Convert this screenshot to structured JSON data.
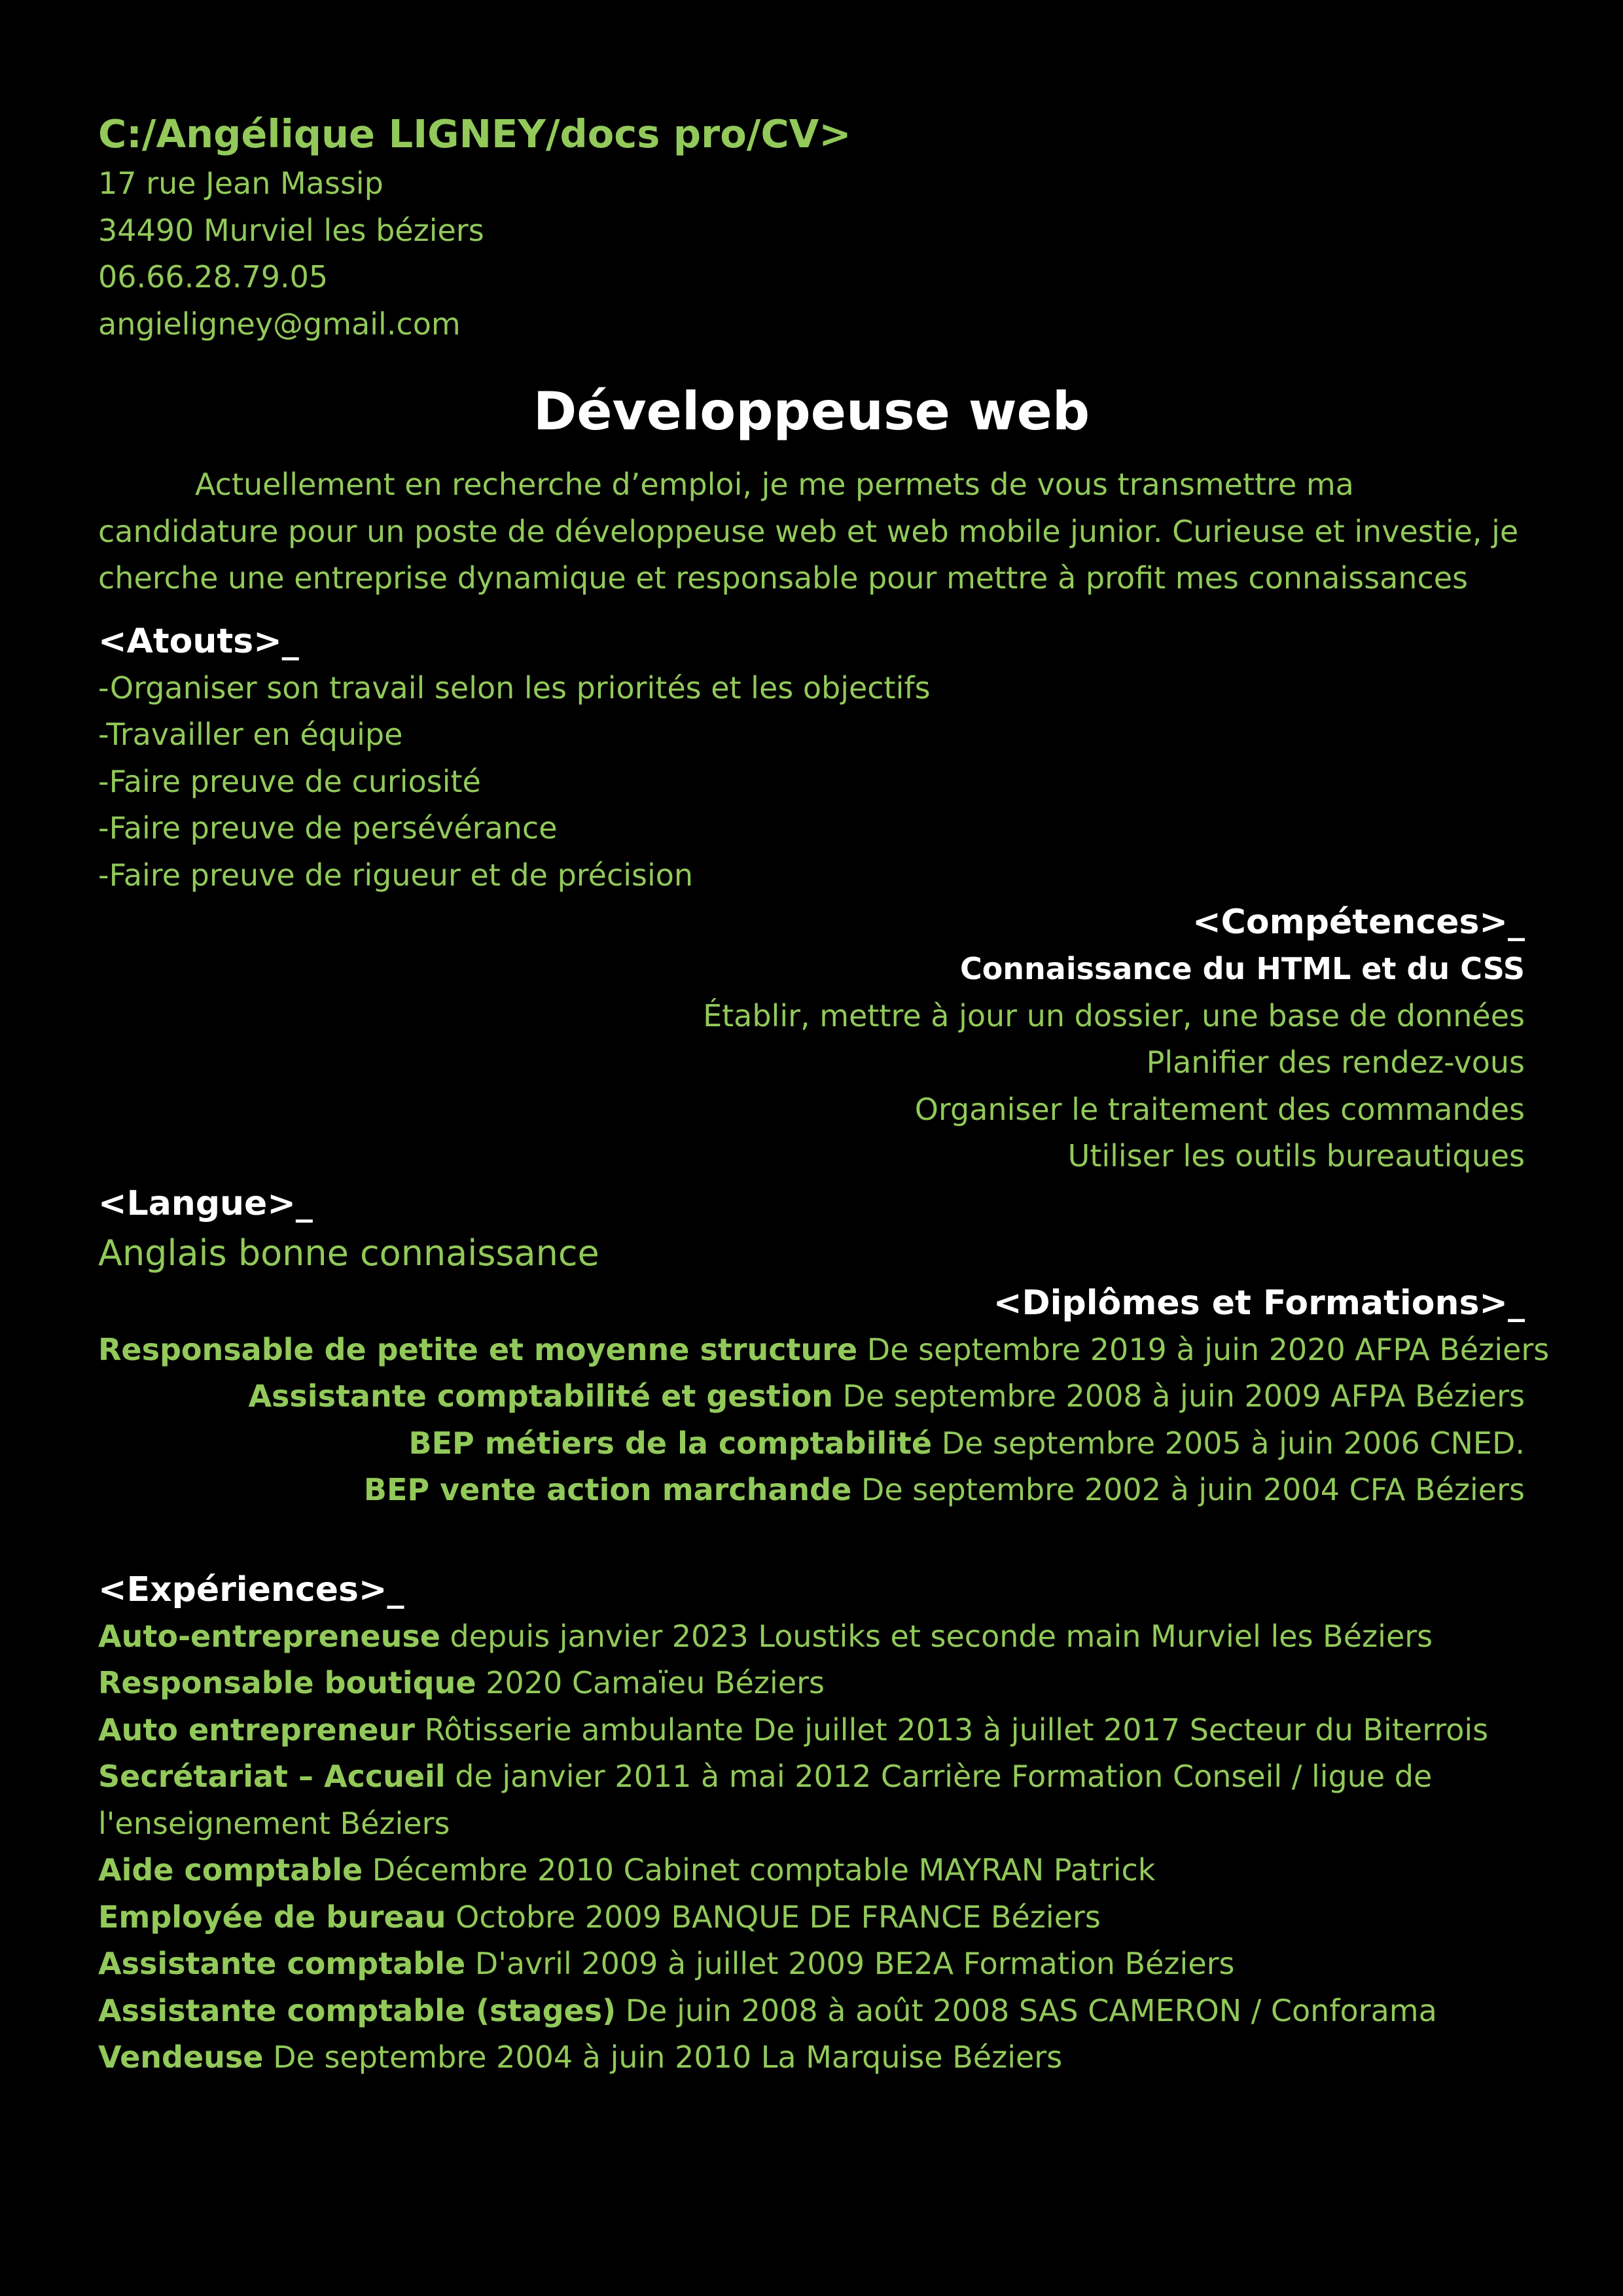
{
  "header": {
    "prompt": "C:/Angélique LIGNEY/docs pro/CV>",
    "address_line1": "17 rue Jean Massip",
    "address_line2": "34490 Murviel les béziers",
    "phone": "06.66.28.79.05",
    "email": "angieligney@gmail.com"
  },
  "title": "Développeuse web",
  "intro": "Actuellement en recherche d’emploi, je me permets de vous transmettre ma candidature pour un poste de développeuse web et web mobile junior. Curieuse et investie, je cherche une entreprise dynamique et responsable pour mettre à profit mes connaissances",
  "atouts": {
    "heading": "<Atouts>_",
    "items": [
      "-Organiser son travail selon les priorités et les objectifs",
      "-Travailler en équipe",
      "-Faire preuve de curiosité",
      "-Faire preuve de persévérance",
      "-Faire preuve de rigueur et de précision"
    ]
  },
  "competences": {
    "heading": "<Compétences>_",
    "highlight": "Connaissance du HTML et du CSS",
    "items": [
      "Établir, mettre à jour un dossier, une base de données",
      "Planifier des rendez-vous",
      "Organiser le traitement des commandes",
      "Utiliser les outils bureautiques"
    ]
  },
  "langue": {
    "heading": "<Langue>_",
    "value": "Anglais bonne connaissance"
  },
  "diplomes": {
    "heading": "<Diplômes et Formations>_",
    "items": [
      {
        "title": "Responsable de petite et moyenne structure",
        "detail": " De septembre 2019 à juin 2020 AFPA Béziers"
      },
      {
        "title": "Assistante comptabilité et gestion",
        "detail": " De septembre 2008 à juin 2009 AFPA Béziers"
      },
      {
        "title": "BEP métiers de la comptabilité",
        "detail": " De septembre 2005 à juin 2006 CNED."
      },
      {
        "title": "BEP vente action marchande",
        "detail": " De septembre 2002 à juin 2004 CFA Béziers"
      }
    ]
  },
  "experiences": {
    "heading": "<Expériences>_",
    "items": [
      {
        "title": "Auto-entrepreneuse",
        "detail": " depuis janvier 2023 Loustiks et seconde main Murviel les Béziers"
      },
      {
        "title": "Responsable boutique",
        "detail": " 2020 Camaïeu Béziers"
      },
      {
        "title": "Auto entrepreneur",
        "detail": " Rôtisserie ambulante De juillet 2013 à juillet 2017 Secteur du  Biterrois"
      },
      {
        "title": "Secrétariat – Accueil",
        "detail": " de janvier 2011 à mai 2012 Carrière Formation Conseil / ligue de l'enseignement Béziers"
      },
      {
        "title": "Aide comptable",
        "detail": " Décembre 2010  Cabinet comptable MAYRAN Patrick"
      },
      {
        "title": "Employée de bureau",
        "detail": " Octobre 2009 BANQUE DE FRANCE Béziers"
      },
      {
        "title": "Assistante comptable",
        "detail": " D'avril 2009 à juillet 2009 BE2A Formation Béziers"
      },
      {
        "title": "Assistante comptable (stages)",
        "detail": " De juin 2008 à août 2008 SAS CAMERON / Conforama"
      },
      {
        "title": "Vendeuse",
        "detail": " De septembre 2004 à juin 2010 La Marquise Béziers"
      }
    ]
  },
  "colors": {
    "background": "#000000",
    "text_green": "#92c95a",
    "heading_white": "#ffffff"
  }
}
